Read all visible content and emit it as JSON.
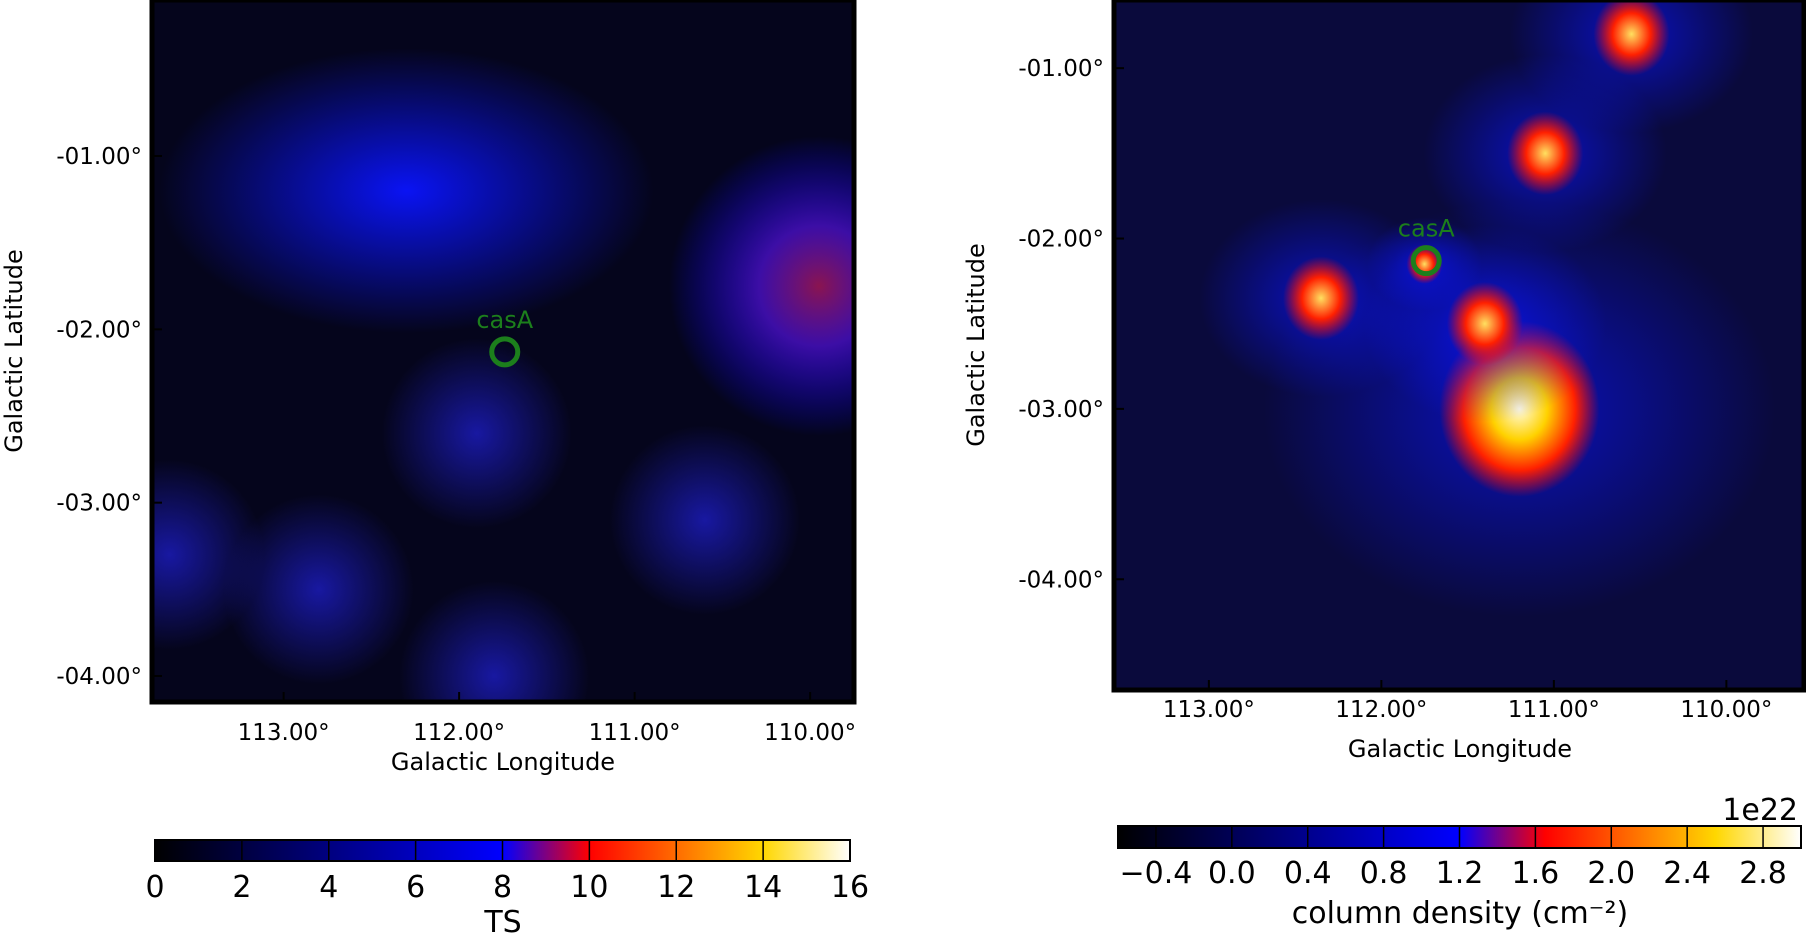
{
  "colors": {
    "marker": "#1c7f1c",
    "frame": "#000000"
  },
  "chart_data": [
    {
      "type": "heatmap",
      "xlabel": "Galactic Longitude",
      "ylabel": "Galactic Latitude",
      "xlim": [
        113.75,
        109.75
      ],
      "ylim": [
        -4.15,
        -0.1
      ],
      "x_ticks": [
        113.0,
        112.0,
        111.0,
        110.0
      ],
      "x_tick_labels": [
        "113.00°",
        "112.00°",
        "111.00°",
        "110.00°"
      ],
      "y_ticks": [
        -1.0,
        -2.0,
        -3.0,
        -4.0
      ],
      "y_tick_labels": [
        "-01.00°",
        "-02.00°",
        "-03.00°",
        "-04.00°"
      ],
      "annotations": [
        {
          "text": "casA",
          "x": 111.74,
          "y": -2.13
        }
      ],
      "colorbar": {
        "label": "TS",
        "min": 0,
        "max": 16,
        "ticks": [
          0,
          2,
          4,
          6,
          8,
          10,
          12,
          14,
          16
        ],
        "tick_labels": [
          "0",
          "2",
          "4",
          "6",
          "8",
          "10",
          "12",
          "14",
          "16"
        ],
        "offset_text": ""
      },
      "features": [
        {
          "x": 112.3,
          "y": -1.2,
          "peak": 5.0
        },
        {
          "x": 109.95,
          "y": -1.75,
          "peak": 9.0
        },
        {
          "x": 113.65,
          "y": -3.3,
          "peak": 2.5
        },
        {
          "x": 112.8,
          "y": -3.5,
          "peak": 2.0
        },
        {
          "x": 111.8,
          "y": -4.0,
          "peak": 2.0
        },
        {
          "x": 110.6,
          "y": -3.1,
          "peak": 2.5
        },
        {
          "x": 111.9,
          "y": -2.6,
          "peak": 2.5
        }
      ]
    },
    {
      "type": "heatmap",
      "xlabel": "Galactic Longitude",
      "ylabel": "Galactic Latitude",
      "xlim": [
        113.55,
        109.55
      ],
      "ylim": [
        -4.65,
        -0.6
      ],
      "x_ticks": [
        113.0,
        112.0,
        111.0,
        110.0
      ],
      "x_tick_labels": [
        "113.00°",
        "112.00°",
        "111.00°",
        "110.00°"
      ],
      "y_ticks": [
        -1.0,
        -2.0,
        -3.0,
        -4.0
      ],
      "y_tick_labels": [
        "-01.00°",
        "-02.00°",
        "-03.00°",
        "-04.00°"
      ],
      "annotations": [
        {
          "text": "casA",
          "x": 111.74,
          "y": -2.13
        }
      ],
      "colorbar": {
        "label": "column density (cm⁻²)",
        "min": -0.6,
        "max": 3.0,
        "ticks": [
          -0.4,
          0.0,
          0.4,
          0.8,
          1.2,
          1.6,
          2.0,
          2.4,
          2.8
        ],
        "tick_labels": [
          "−0.4",
          "0.0",
          "0.4",
          "0.8",
          "1.2",
          "1.6",
          "2.0",
          "2.4",
          "2.8"
        ],
        "offset_text": "1e22"
      },
      "features": [
        {
          "x": 111.2,
          "y": -3.0,
          "peak": 3.0
        },
        {
          "x": 111.05,
          "y": -1.5,
          "peak": 2.4
        },
        {
          "x": 110.55,
          "y": -0.8,
          "peak": 2.2
        },
        {
          "x": 112.35,
          "y": -2.35,
          "peak": 2.0
        },
        {
          "x": 111.4,
          "y": -2.5,
          "peak": 2.1
        },
        {
          "x": 111.75,
          "y": -2.15,
          "peak": 1.9
        }
      ]
    }
  ]
}
